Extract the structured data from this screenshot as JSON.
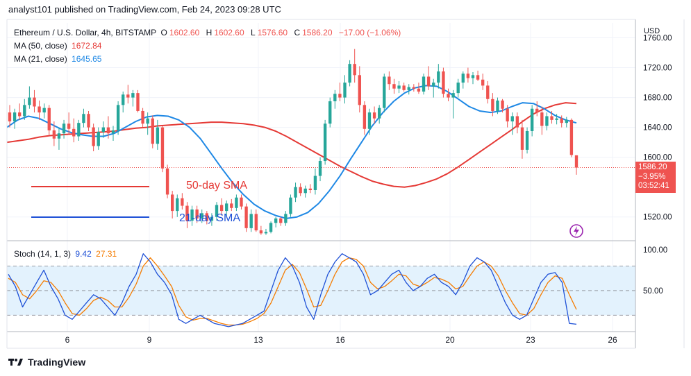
{
  "header": {
    "caption": "analyst101 published on TradingView.com, Feb 24, 2023 09:28 UTC"
  },
  "legend": {
    "symbol": "Ethereum / U.S. Dollar, 4h, BITSTAMP",
    "open_label": "O",
    "open": "1602.60",
    "high_label": "H",
    "high": "1602.60",
    "low_label": "L",
    "low": "1576.60",
    "close_label": "C",
    "close": "1586.20",
    "change": "−17.00 (−1.06%)",
    "ma50_label": "MA (50, close)",
    "ma50_value": "1672.84",
    "ma21_label": "MA (21, close)",
    "ma21_value": "1645.65",
    "stoch_label": "Stoch (14, 1, 3)",
    "stoch_k": "9.42",
    "stoch_d": "27.31"
  },
  "price_tag": {
    "price": "1586.20",
    "change": "−3.95%",
    "countdown": "03:52:41"
  },
  "annotations": {
    "ma50_text": "50-day SMA",
    "ma21_text": "21-day SMA"
  },
  "footer": {
    "brand": "TradingView"
  },
  "colors": {
    "up": "#26a69a",
    "down": "#ef5350",
    "ma50": "#e53935",
    "ma21": "#1e88e5",
    "stoch_k": "#1e50d6",
    "stoch_d": "#f57c00",
    "stoch_band": "#e3f2fd",
    "grid": "#f0f3fa"
  },
  "chart_data": {
    "type": "candlestick",
    "price_axis": {
      "unit": "USD",
      "ticks": [
        1760.0,
        1720.0,
        1680.0,
        1640.0,
        1600.0,
        1520.0
      ],
      "range": [
        1490,
        1780
      ]
    },
    "time_axis": {
      "ticks": [
        "6",
        "9",
        "13",
        "16",
        "20",
        "23",
        "26"
      ]
    },
    "candles": [
      {
        "o": 1660,
        "h": 1670,
        "l": 1640,
        "c": 1648
      },
      {
        "o": 1648,
        "h": 1665,
        "l": 1638,
        "c": 1660
      },
      {
        "o": 1660,
        "h": 1672,
        "l": 1650,
        "c": 1655
      },
      {
        "o": 1655,
        "h": 1678,
        "l": 1650,
        "c": 1670
      },
      {
        "o": 1670,
        "h": 1695,
        "l": 1665,
        "c": 1680
      },
      {
        "o": 1680,
        "h": 1690,
        "l": 1660,
        "c": 1668
      },
      {
        "o": 1668,
        "h": 1676,
        "l": 1650,
        "c": 1660
      },
      {
        "o": 1660,
        "h": 1672,
        "l": 1652,
        "c": 1666
      },
      {
        "o": 1666,
        "h": 1670,
        "l": 1630,
        "c": 1636
      },
      {
        "o": 1636,
        "h": 1648,
        "l": 1615,
        "c": 1625
      },
      {
        "o": 1625,
        "h": 1640,
        "l": 1610,
        "c": 1632
      },
      {
        "o": 1632,
        "h": 1650,
        "l": 1625,
        "c": 1645
      },
      {
        "o": 1645,
        "h": 1660,
        "l": 1630,
        "c": 1638
      },
      {
        "o": 1638,
        "h": 1652,
        "l": 1620,
        "c": 1628
      },
      {
        "o": 1628,
        "h": 1650,
        "l": 1622,
        "c": 1646
      },
      {
        "o": 1646,
        "h": 1665,
        "l": 1640,
        "c": 1658
      },
      {
        "o": 1658,
        "h": 1662,
        "l": 1635,
        "c": 1640
      },
      {
        "o": 1640,
        "h": 1645,
        "l": 1608,
        "c": 1615
      },
      {
        "o": 1615,
        "h": 1640,
        "l": 1610,
        "c": 1634
      },
      {
        "o": 1634,
        "h": 1648,
        "l": 1626,
        "c": 1640
      },
      {
        "o": 1640,
        "h": 1655,
        "l": 1625,
        "c": 1632
      },
      {
        "o": 1632,
        "h": 1642,
        "l": 1622,
        "c": 1636
      },
      {
        "o": 1636,
        "h": 1675,
        "l": 1630,
        "c": 1670
      },
      {
        "o": 1670,
        "h": 1688,
        "l": 1660,
        "c": 1684
      },
      {
        "o": 1684,
        "h": 1697,
        "l": 1672,
        "c": 1680
      },
      {
        "o": 1680,
        "h": 1690,
        "l": 1668,
        "c": 1686
      },
      {
        "o": 1686,
        "h": 1690,
        "l": 1660,
        "c": 1662
      },
      {
        "o": 1662,
        "h": 1666,
        "l": 1640,
        "c": 1645
      },
      {
        "o": 1645,
        "h": 1660,
        "l": 1630,
        "c": 1652
      },
      {
        "o": 1652,
        "h": 1656,
        "l": 1612,
        "c": 1618
      },
      {
        "o": 1618,
        "h": 1650,
        "l": 1610,
        "c": 1640
      },
      {
        "o": 1640,
        "h": 1642,
        "l": 1580,
        "c": 1585
      },
      {
        "o": 1585,
        "h": 1590,
        "l": 1545,
        "c": 1550
      },
      {
        "o": 1550,
        "h": 1555,
        "l": 1518,
        "c": 1528
      },
      {
        "o": 1528,
        "h": 1550,
        "l": 1520,
        "c": 1545
      },
      {
        "o": 1545,
        "h": 1552,
        "l": 1530,
        "c": 1535
      },
      {
        "o": 1535,
        "h": 1540,
        "l": 1505,
        "c": 1515
      },
      {
        "o": 1515,
        "h": 1535,
        "l": 1508,
        "c": 1530
      },
      {
        "o": 1530,
        "h": 1535,
        "l": 1512,
        "c": 1518
      },
      {
        "o": 1518,
        "h": 1530,
        "l": 1512,
        "c": 1525
      },
      {
        "o": 1525,
        "h": 1528,
        "l": 1510,
        "c": 1515
      },
      {
        "o": 1515,
        "h": 1525,
        "l": 1508,
        "c": 1520
      },
      {
        "o": 1520,
        "h": 1540,
        "l": 1515,
        "c": 1536
      },
      {
        "o": 1536,
        "h": 1545,
        "l": 1522,
        "c": 1528
      },
      {
        "o": 1528,
        "h": 1542,
        "l": 1520,
        "c": 1538
      },
      {
        "o": 1538,
        "h": 1544,
        "l": 1528,
        "c": 1532
      },
      {
        "o": 1532,
        "h": 1550,
        "l": 1528,
        "c": 1546
      },
      {
        "o": 1546,
        "h": 1550,
        "l": 1530,
        "c": 1534
      },
      {
        "o": 1534,
        "h": 1538,
        "l": 1500,
        "c": 1505
      },
      {
        "o": 1505,
        "h": 1530,
        "l": 1500,
        "c": 1524
      },
      {
        "o": 1524,
        "h": 1530,
        "l": 1500,
        "c": 1502
      },
      {
        "o": 1502,
        "h": 1508,
        "l": 1496,
        "c": 1498
      },
      {
        "o": 1498,
        "h": 1504,
        "l": 1496,
        "c": 1500
      },
      {
        "o": 1500,
        "h": 1514,
        "l": 1498,
        "c": 1512
      },
      {
        "o": 1512,
        "h": 1520,
        "l": 1506,
        "c": 1518
      },
      {
        "o": 1518,
        "h": 1520,
        "l": 1508,
        "c": 1512
      },
      {
        "o": 1512,
        "h": 1528,
        "l": 1508,
        "c": 1524
      },
      {
        "o": 1524,
        "h": 1550,
        "l": 1520,
        "c": 1546
      },
      {
        "o": 1546,
        "h": 1566,
        "l": 1540,
        "c": 1560
      },
      {
        "o": 1560,
        "h": 1565,
        "l": 1548,
        "c": 1552
      },
      {
        "o": 1552,
        "h": 1562,
        "l": 1546,
        "c": 1558
      },
      {
        "o": 1558,
        "h": 1564,
        "l": 1552,
        "c": 1556
      },
      {
        "o": 1556,
        "h": 1585,
        "l": 1550,
        "c": 1575
      },
      {
        "o": 1575,
        "h": 1600,
        "l": 1568,
        "c": 1595
      },
      {
        "o": 1595,
        "h": 1650,
        "l": 1590,
        "c": 1645
      },
      {
        "o": 1645,
        "h": 1680,
        "l": 1640,
        "c": 1675
      },
      {
        "o": 1675,
        "h": 1690,
        "l": 1665,
        "c": 1685
      },
      {
        "o": 1685,
        "h": 1700,
        "l": 1675,
        "c": 1680
      },
      {
        "o": 1680,
        "h": 1710,
        "l": 1672,
        "c": 1700
      },
      {
        "o": 1700,
        "h": 1730,
        "l": 1695,
        "c": 1725
      },
      {
        "o": 1725,
        "h": 1745,
        "l": 1700,
        "c": 1710
      },
      {
        "o": 1710,
        "h": 1722,
        "l": 1660,
        "c": 1670
      },
      {
        "o": 1670,
        "h": 1675,
        "l": 1630,
        "c": 1638
      },
      {
        "o": 1638,
        "h": 1665,
        "l": 1630,
        "c": 1660
      },
      {
        "o": 1660,
        "h": 1668,
        "l": 1645,
        "c": 1652
      },
      {
        "o": 1652,
        "h": 1670,
        "l": 1645,
        "c": 1666
      },
      {
        "o": 1666,
        "h": 1712,
        "l": 1660,
        "c": 1708
      },
      {
        "o": 1708,
        "h": 1715,
        "l": 1690,
        "c": 1698
      },
      {
        "o": 1698,
        "h": 1705,
        "l": 1685,
        "c": 1692
      },
      {
        "o": 1692,
        "h": 1702,
        "l": 1686,
        "c": 1696
      },
      {
        "o": 1696,
        "h": 1700,
        "l": 1688,
        "c": 1690
      },
      {
        "o": 1690,
        "h": 1698,
        "l": 1684,
        "c": 1694
      },
      {
        "o": 1694,
        "h": 1698,
        "l": 1688,
        "c": 1692
      },
      {
        "o": 1692,
        "h": 1700,
        "l": 1685,
        "c": 1688
      },
      {
        "o": 1688,
        "h": 1712,
        "l": 1684,
        "c": 1708
      },
      {
        "o": 1708,
        "h": 1722,
        "l": 1690,
        "c": 1695
      },
      {
        "o": 1695,
        "h": 1705,
        "l": 1680,
        "c": 1700
      },
      {
        "o": 1700,
        "h": 1725,
        "l": 1692,
        "c": 1715
      },
      {
        "o": 1715,
        "h": 1720,
        "l": 1680,
        "c": 1685
      },
      {
        "o": 1685,
        "h": 1692,
        "l": 1675,
        "c": 1680
      },
      {
        "o": 1680,
        "h": 1690,
        "l": 1652,
        "c": 1686
      },
      {
        "o": 1686,
        "h": 1705,
        "l": 1680,
        "c": 1700
      },
      {
        "o": 1700,
        "h": 1715,
        "l": 1692,
        "c": 1712
      },
      {
        "o": 1712,
        "h": 1720,
        "l": 1700,
        "c": 1706
      },
      {
        "o": 1706,
        "h": 1714,
        "l": 1698,
        "c": 1710
      },
      {
        "o": 1710,
        "h": 1716,
        "l": 1702,
        "c": 1704
      },
      {
        "o": 1704,
        "h": 1712,
        "l": 1690,
        "c": 1696
      },
      {
        "o": 1696,
        "h": 1702,
        "l": 1672,
        "c": 1678
      },
      {
        "o": 1678,
        "h": 1686,
        "l": 1655,
        "c": 1662
      },
      {
        "o": 1662,
        "h": 1680,
        "l": 1658,
        "c": 1676
      },
      {
        "o": 1676,
        "h": 1678,
        "l": 1660,
        "c": 1665
      },
      {
        "o": 1665,
        "h": 1670,
        "l": 1640,
        "c": 1648
      },
      {
        "o": 1648,
        "h": 1660,
        "l": 1630,
        "c": 1655
      },
      {
        "o": 1655,
        "h": 1660,
        "l": 1632,
        "c": 1640
      },
      {
        "o": 1640,
        "h": 1650,
        "l": 1598,
        "c": 1610
      },
      {
        "o": 1610,
        "h": 1640,
        "l": 1605,
        "c": 1635
      },
      {
        "o": 1635,
        "h": 1670,
        "l": 1628,
        "c": 1665
      },
      {
        "o": 1665,
        "h": 1675,
        "l": 1655,
        "c": 1660
      },
      {
        "o": 1660,
        "h": 1668,
        "l": 1630,
        "c": 1642
      },
      {
        "o": 1642,
        "h": 1660,
        "l": 1636,
        "c": 1655
      },
      {
        "o": 1655,
        "h": 1662,
        "l": 1645,
        "c": 1650
      },
      {
        "o": 1650,
        "h": 1658,
        "l": 1644,
        "c": 1652
      },
      {
        "o": 1652,
        "h": 1656,
        "l": 1640,
        "c": 1646
      },
      {
        "o": 1646,
        "h": 1654,
        "l": 1640,
        "c": 1650
      },
      {
        "o": 1650,
        "h": 1652,
        "l": 1600,
        "c": 1603
      },
      {
        "o": 1602.6,
        "h": 1602.6,
        "l": 1576.6,
        "c": 1586.2
      }
    ],
    "ma50": [
      1620,
      1622,
      1624,
      1627,
      1629,
      1630,
      1631,
      1632,
      1633,
      1634,
      1635,
      1637,
      1639,
      1640,
      1642,
      1643,
      1644,
      1645,
      1646,
      1647,
      1647,
      1646,
      1645,
      1643,
      1640,
      1635,
      1628,
      1620,
      1612,
      1604,
      1596,
      1588,
      1581,
      1574,
      1568,
      1564,
      1561,
      1560,
      1562,
      1566,
      1571,
      1578,
      1587,
      1597,
      1607,
      1617,
      1627,
      1637,
      1648,
      1658,
      1665,
      1670,
      1673,
      1672
    ],
    "ma21": [
      1640,
      1650,
      1655,
      1652,
      1645,
      1638,
      1633,
      1630,
      1628,
      1628,
      1632,
      1640,
      1648,
      1654,
      1656,
      1655,
      1650,
      1640,
      1625,
      1605,
      1585,
      1566,
      1550,
      1537,
      1528,
      1522,
      1518,
      1520,
      1526,
      1538,
      1555,
      1575,
      1598,
      1620,
      1642,
      1660,
      1675,
      1686,
      1693,
      1696,
      1695,
      1688,
      1678,
      1668,
      1662,
      1660,
      1662,
      1668,
      1673,
      1672,
      1665,
      1656,
      1650,
      1646
    ],
    "stoch_axis": {
      "ticks": [
        100.0,
        50.0
      ],
      "range": [
        0,
        110
      ],
      "bands": [
        20,
        80
      ]
    },
    "stoch_k": [
      70,
      55,
      30,
      45,
      60,
      75,
      55,
      40,
      20,
      15,
      25,
      35,
      45,
      40,
      30,
      20,
      35,
      55,
      70,
      95,
      85,
      70,
      60,
      45,
      15,
      10,
      15,
      20,
      15,
      10,
      8,
      6,
      8,
      10,
      15,
      20,
      25,
      50,
      75,
      90,
      80,
      60,
      30,
      15,
      45,
      70,
      85,
      95,
      90,
      85,
      70,
      45,
      50,
      60,
      70,
      75,
      60,
      50,
      55,
      65,
      70,
      60,
      55,
      45,
      60,
      80,
      90,
      85,
      75,
      55,
      35,
      20,
      15,
      20,
      40,
      60,
      70,
      72,
      60,
      10,
      9
    ],
    "stoch_d": [
      65,
      60,
      45,
      40,
      50,
      62,
      60,
      50,
      35,
      22,
      20,
      28,
      38,
      42,
      38,
      30,
      30,
      42,
      58,
      80,
      90,
      80,
      68,
      55,
      32,
      18,
      14,
      16,
      16,
      13,
      10,
      8,
      8,
      9,
      12,
      16,
      22,
      35,
      55,
      75,
      82,
      72,
      52,
      30,
      32,
      50,
      70,
      85,
      90,
      88,
      80,
      60,
      52,
      55,
      62,
      70,
      68,
      58,
      55,
      60,
      66,
      64,
      60,
      52,
      55,
      68,
      80,
      85,
      80,
      68,
      50,
      35,
      22,
      20,
      28,
      45,
      60,
      68,
      65,
      45,
      27
    ]
  }
}
